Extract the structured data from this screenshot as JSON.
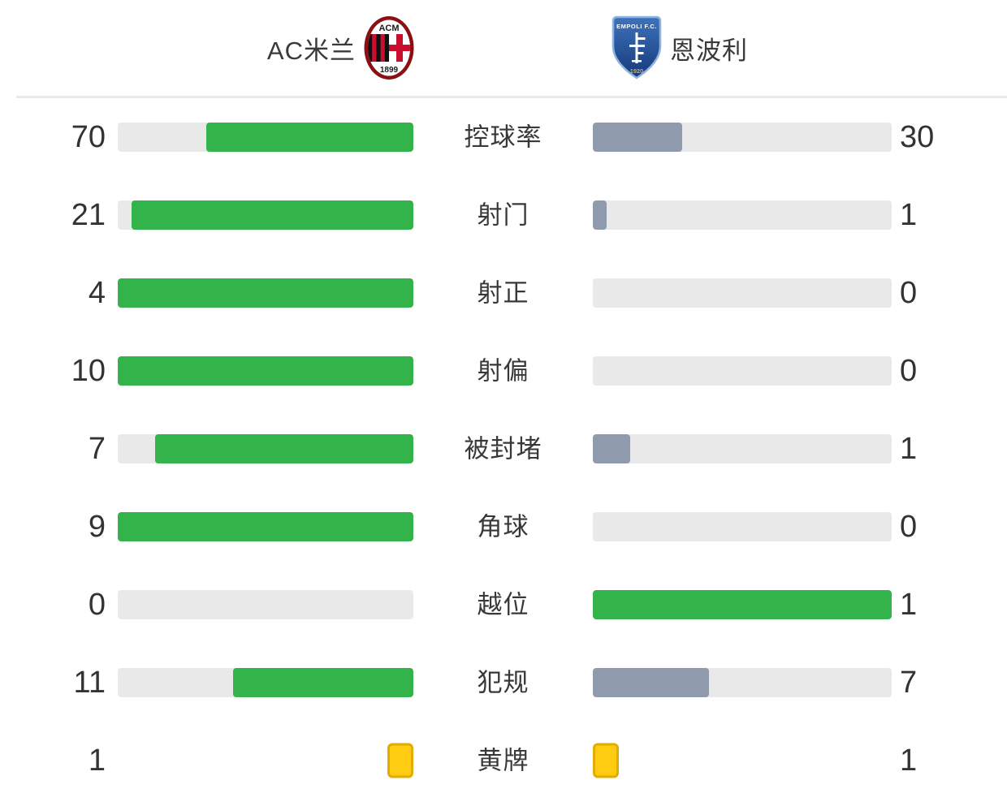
{
  "header": {
    "home": {
      "name": "AC米兰"
    },
    "away": {
      "name": "恩波利"
    },
    "crests": {
      "milan": {
        "top": "ACM",
        "year": "1899"
      },
      "empoli": {
        "top": "EMPOLI F.C.",
        "year": "1920"
      }
    }
  },
  "colors": {
    "win_fill": "#33B44A",
    "lose_fill": "#8F9AAC",
    "track": "#E9E9E9",
    "card_fill": "#FFCC12",
    "card_border": "#E3AC00",
    "text": "#333333"
  },
  "chart_data": {
    "type": "bar",
    "categories": [
      "控球率",
      "射门",
      "射正",
      "射偏",
      "被封堵",
      "角球",
      "越位",
      "犯规",
      "黄牌"
    ],
    "series": [
      {
        "name": "AC米兰",
        "values": [
          70,
          21,
          4,
          10,
          7,
          9,
          0,
          11,
          1
        ]
      },
      {
        "name": "恩波利",
        "values": [
          30,
          1,
          0,
          0,
          1,
          0,
          1,
          7,
          1
        ]
      }
    ],
    "legend_position": "top",
    "grid": false,
    "rows": [
      {
        "label": "控球率",
        "home": 70,
        "away": 30,
        "style": "bar"
      },
      {
        "label": "射门",
        "home": 21,
        "away": 1,
        "style": "bar"
      },
      {
        "label": "射正",
        "home": 4,
        "away": 0,
        "style": "bar"
      },
      {
        "label": "射偏",
        "home": 10,
        "away": 0,
        "style": "bar"
      },
      {
        "label": "被封堵",
        "home": 7,
        "away": 1,
        "style": "bar"
      },
      {
        "label": "角球",
        "home": 9,
        "away": 0,
        "style": "bar"
      },
      {
        "label": "越位",
        "home": 0,
        "away": 1,
        "style": "bar"
      },
      {
        "label": "犯规",
        "home": 11,
        "away": 7,
        "style": "bar"
      },
      {
        "label": "黄牌",
        "home": 1,
        "away": 1,
        "style": "card"
      }
    ]
  }
}
